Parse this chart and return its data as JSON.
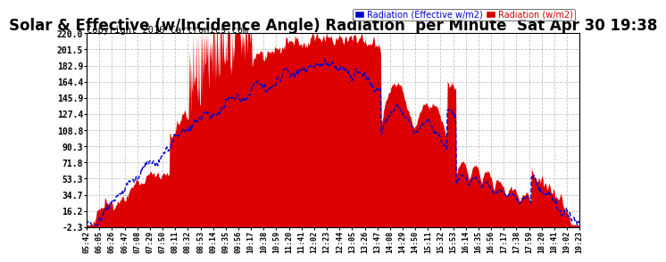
{
  "title": "Solar & Effective (w/Incidence Angle) Radiation  per Minute  Sat Apr 30 19:38",
  "copyright": "Copyright 2016 Cartronics.com",
  "ymin": -2.3,
  "ymax": 220.0,
  "yticks": [
    220.0,
    201.5,
    182.9,
    164.4,
    145.9,
    127.4,
    108.8,
    90.3,
    71.8,
    53.3,
    34.7,
    16.2,
    -2.3
  ],
  "legend_label1": "Radiation (Effective w/m2)",
  "legend_label2": "Radiation (w/m2)",
  "legend_color1": "#0000cc",
  "legend_color2": "#cc0000",
  "bg_color": "#ffffff",
  "plot_bg_color": "#ffffff",
  "grid_color": "#aaaaaa",
  "fill_color": "#dd0000",
  "line_color": "#0000cc",
  "title_fontsize": 12,
  "copyright_fontsize": 7.5
}
